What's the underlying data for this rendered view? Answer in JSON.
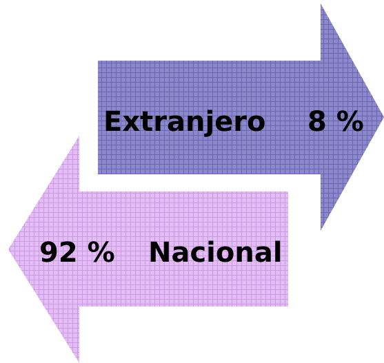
{
  "nodes": [
    {
      "label": "Extranjero",
      "value": "8 %"
    },
    {
      "label": "Nacional",
      "value": "92 %"
    }
  ]
}
